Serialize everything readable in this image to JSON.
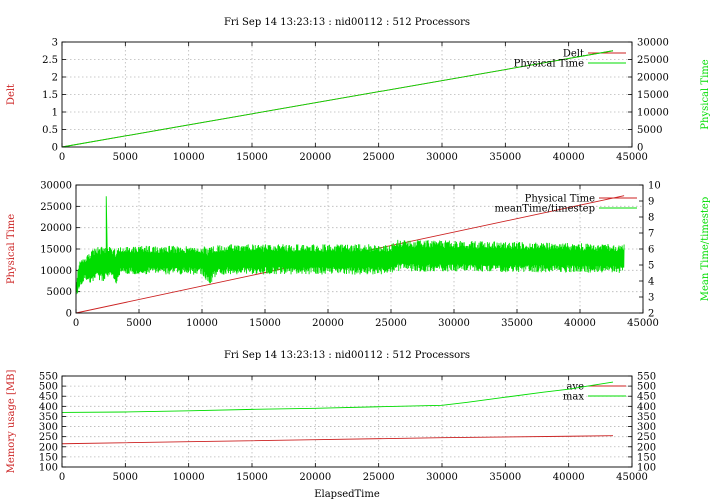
{
  "colors": {
    "red": "#cc2222",
    "green": "#00dd00",
    "grid": "#b8b8b8",
    "text": "#000000"
  },
  "chart_data": [
    {
      "type": "line",
      "title": "Fri Sep 14 13:23:13 : nid00112 : 512 Processors",
      "xlabel": "",
      "ylabel": "Delt",
      "y2label": "Physical Time",
      "xlim": [
        0,
        45000
      ],
      "ylim": [
        0,
        3
      ],
      "y2lim": [
        0,
        30000
      ],
      "xticks": [
        0,
        5000,
        10000,
        15000,
        20000,
        25000,
        30000,
        35000,
        40000,
        45000
      ],
      "yticks": [
        0,
        0.5,
        1,
        1.5,
        2,
        2.5,
        3
      ],
      "y2ticks": [
        0,
        5000,
        10000,
        15000,
        20000,
        25000,
        30000
      ],
      "grid": true,
      "legend": "top-right",
      "series": [
        {
          "name": "Delt",
          "axis": "y",
          "color": "#cc2222",
          "x": [
            0,
            43500
          ],
          "y": [
            0,
            2.75
          ]
        },
        {
          "name": "Physical Time",
          "axis": "y2",
          "color": "#00dd00",
          "x": [
            0,
            43500
          ],
          "y": [
            0,
            27500
          ]
        }
      ]
    },
    {
      "type": "line",
      "title": "",
      "xlabel": "",
      "ylabel": "Physical Time",
      "y2label": "Mean Time/timestep",
      "xlim": [
        0,
        45000
      ],
      "ylim": [
        0,
        30000
      ],
      "y2lim": [
        2,
        10
      ],
      "xticks": [
        0,
        5000,
        10000,
        15000,
        20000,
        25000,
        30000,
        35000,
        40000,
        45000
      ],
      "yticks": [
        0,
        5000,
        10000,
        15000,
        20000,
        25000,
        30000
      ],
      "y2ticks": [
        2,
        3,
        4,
        5,
        6,
        7,
        8,
        9,
        10
      ],
      "grid": true,
      "legend": "top-right",
      "series": [
        {
          "name": "Physical Time",
          "axis": "y",
          "color": "#cc2222",
          "x": [
            0,
            43500
          ],
          "y": [
            0,
            27500
          ]
        },
        {
          "name": "meanTime/timestep",
          "axis": "y2",
          "color": "#00dd00",
          "x_range": [
            0,
            43500
          ],
          "band_x": [
            0,
            300,
            700,
            1200,
            1600,
            2200,
            2600,
            3200,
            3600,
            4000,
            10000,
            10600,
            11200,
            25000,
            25400,
            43500
          ],
          "band_low": [
            2.9,
            3.6,
            4.1,
            3.8,
            4.3,
            3.7,
            4.3,
            3.8,
            4.4,
            4.4,
            4.4,
            3.7,
            4.4,
            4.4,
            4.6,
            4.5
          ],
          "band_high": [
            4.0,
            5.3,
            5.5,
            5.9,
            6.1,
            6.2,
            6.3,
            6.0,
            6.2,
            6.2,
            6.2,
            6.1,
            6.3,
            6.3,
            6.6,
            6.3
          ],
          "spikes": [
            {
              "x": 2400,
              "y": 9.3
            }
          ]
        }
      ]
    },
    {
      "type": "line",
      "title": "Fri Sep 14 13:23:13 : nid00112 : 512 Processors",
      "xlabel": "ElapsedTime",
      "ylabel": "Memory usage [MB]",
      "y2label": "",
      "xlim": [
        0,
        45000
      ],
      "ylim": [
        100,
        550
      ],
      "y2lim": [
        100,
        550
      ],
      "xticks": [
        0,
        5000,
        10000,
        15000,
        20000,
        25000,
        30000,
        35000,
        40000,
        45000
      ],
      "yticks": [
        100,
        150,
        200,
        250,
        300,
        350,
        400,
        450,
        500,
        550
      ],
      "y2ticks": [
        100,
        150,
        200,
        250,
        300,
        350,
        400,
        450,
        500,
        550
      ],
      "grid": true,
      "legend": "top-right",
      "series": [
        {
          "name": "ave",
          "axis": "y",
          "color": "#cc2222",
          "x": [
            0,
            10000,
            20000,
            30000,
            40000,
            43500
          ],
          "y": [
            215,
            225,
            235,
            245,
            252,
            255
          ]
        },
        {
          "name": "max",
          "axis": "y",
          "color": "#00dd00",
          "x": [
            0,
            5000,
            10000,
            15000,
            20000,
            25000,
            30000,
            32000,
            35000,
            38000,
            40000,
            42000,
            43500
          ],
          "y": [
            370,
            372,
            378,
            385,
            390,
            398,
            405,
            420,
            445,
            470,
            485,
            505,
            520
          ]
        }
      ]
    }
  ]
}
